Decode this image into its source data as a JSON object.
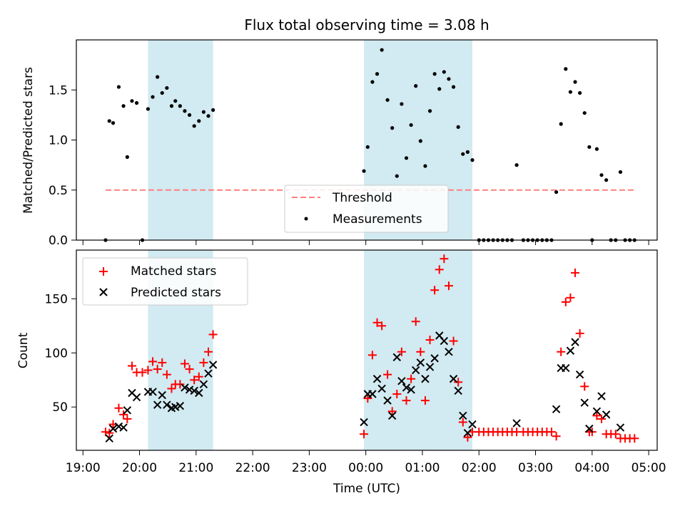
{
  "title": "Flux total observing time = 3.08 h",
  "colors": {
    "shade": "#add8e6",
    "threshold": "#ff7f7f",
    "matched": "#ff0000",
    "predicted": "#000000",
    "points": "#000000"
  },
  "chart_data": [
    {
      "type": "scatter",
      "panel": "top",
      "ylabel": "Matched/Predicted stars",
      "xlim": [
        "18:53",
        "05:09"
      ],
      "ylim": [
        0,
        2.0
      ],
      "yticks": [
        0.0,
        0.5,
        1.0,
        1.5
      ],
      "ytick_labels": [
        "0.0",
        "0.5",
        "1.0",
        "1.5"
      ],
      "shaded_intervals": [
        [
          "20:09",
          "21:18"
        ],
        [
          "23:58",
          "01:53"
        ]
      ],
      "threshold": {
        "name": "Threshold",
        "value": 0.5,
        "x_range": [
          "19:24",
          "04:45"
        ],
        "style": "dashed"
      },
      "legend": {
        "position": "lower center",
        "entries": [
          "Threshold",
          "Measurements"
        ]
      },
      "series": [
        {
          "name": "Measurements",
          "marker": "dot",
          "points": [
            [
              "19:24",
              0.0
            ],
            [
              "19:28",
              1.19
            ],
            [
              "19:32",
              1.17
            ],
            [
              "19:38",
              1.53
            ],
            [
              "19:43",
              1.34
            ],
            [
              "19:47",
              0.83
            ],
            [
              "19:52",
              1.39
            ],
            [
              "19:57",
              1.37
            ],
            [
              "20:03",
              0.0
            ],
            [
              "20:09",
              1.31
            ],
            [
              "20:14",
              1.43
            ],
            [
              "20:19",
              1.63
            ],
            [
              "20:24",
              1.47
            ],
            [
              "20:29",
              1.52
            ],
            [
              "20:34",
              1.34
            ],
            [
              "20:38",
              1.39
            ],
            [
              "20:43",
              1.34
            ],
            [
              "20:48",
              1.29
            ],
            [
              "20:53",
              1.25
            ],
            [
              "20:58",
              1.14
            ],
            [
              "21:03",
              1.19
            ],
            [
              "21:08",
              1.28
            ],
            [
              "21:13",
              1.24
            ],
            [
              "21:18",
              1.3
            ],
            [
              "23:58",
              0.69
            ],
            [
              "00:02",
              0.93
            ],
            [
              "00:07",
              1.58
            ],
            [
              "00:12",
              1.66
            ],
            [
              "00:17",
              1.9
            ],
            [
              "00:23",
              1.4
            ],
            [
              "00:28",
              1.12
            ],
            [
              "00:33",
              0.64
            ],
            [
              "00:38",
              1.36
            ],
            [
              "00:43",
              0.82
            ],
            [
              "00:48",
              1.15
            ],
            [
              "00:53",
              1.54
            ],
            [
              "00:58",
              0.99
            ],
            [
              "01:03",
              0.74
            ],
            [
              "01:08",
              1.29
            ],
            [
              "01:13",
              1.66
            ],
            [
              "01:18",
              1.51
            ],
            [
              "01:23",
              1.68
            ],
            [
              "01:28",
              1.61
            ],
            [
              "01:33",
              1.53
            ],
            [
              "01:38",
              1.13
            ],
            [
              "01:43",
              0.86
            ],
            [
              "01:48",
              0.88
            ],
            [
              "01:53",
              0.8
            ],
            [
              "02:00",
              0.0
            ],
            [
              "02:05",
              0.0
            ],
            [
              "02:10",
              0.0
            ],
            [
              "02:15",
              0.0
            ],
            [
              "02:20",
              0.0
            ],
            [
              "02:25",
              0.0
            ],
            [
              "02:30",
              0.0
            ],
            [
              "02:35",
              0.0
            ],
            [
              "02:40",
              0.75
            ],
            [
              "02:47",
              0.0
            ],
            [
              "02:52",
              0.0
            ],
            [
              "02:57",
              0.0
            ],
            [
              "03:02",
              0.0
            ],
            [
              "03:07",
              0.0
            ],
            [
              "03:12",
              0.0
            ],
            [
              "03:17",
              0.0
            ],
            [
              "03:22",
              0.48
            ],
            [
              "03:27",
              1.16
            ],
            [
              "03:32",
              1.71
            ],
            [
              "03:37",
              1.48
            ],
            [
              "03:42",
              1.58
            ],
            [
              "03:47",
              1.47
            ],
            [
              "03:52",
              1.27
            ],
            [
              "03:57",
              0.93
            ],
            [
              "04:00",
              0.0
            ],
            [
              "04:05",
              0.91
            ],
            [
              "04:10",
              0.65
            ],
            [
              "04:15",
              0.6
            ],
            [
              "04:20",
              0.0
            ],
            [
              "04:25",
              0.0
            ],
            [
              "04:30",
              0.68
            ],
            [
              "04:35",
              0.0
            ],
            [
              "04:40",
              0.0
            ],
            [
              "04:45",
              0.0
            ]
          ]
        }
      ]
    },
    {
      "type": "scatter",
      "panel": "bottom",
      "xlabel": "Time (UTC)",
      "ylabel": "Count",
      "xlim": [
        "18:53",
        "05:09"
      ],
      "ylim": [
        10,
        195
      ],
      "yticks": [
        50,
        100,
        150
      ],
      "ytick_labels": [
        "50",
        "100",
        "150"
      ],
      "xticks": [
        "19:00",
        "20:00",
        "21:00",
        "22:00",
        "23:00",
        "00:00",
        "01:00",
        "02:00",
        "03:00",
        "04:00",
        "05:00"
      ],
      "shaded_intervals": [
        [
          "20:09",
          "21:18"
        ],
        [
          "23:58",
          "01:53"
        ]
      ],
      "legend": {
        "position": "upper left",
        "entries": [
          "Matched stars",
          "Predicted stars"
        ]
      },
      "series": [
        {
          "name": "Matched stars",
          "marker": "plus",
          "points": [
            [
              "19:24",
              27
            ],
            [
              "19:28",
              26
            ],
            [
              "19:32",
              34
            ],
            [
              "19:38",
              49
            ],
            [
              "19:43",
              43
            ],
            [
              "19:47",
              39
            ],
            [
              "19:52",
              88
            ],
            [
              "19:57",
              82
            ],
            [
              "20:03",
              82
            ],
            [
              "20:09",
              84
            ],
            [
              "20:14",
              92
            ],
            [
              "20:19",
              85
            ],
            [
              "20:24",
              91
            ],
            [
              "20:29",
              80
            ],
            [
              "20:34",
              67
            ],
            [
              "20:38",
              71
            ],
            [
              "20:43",
              71
            ],
            [
              "20:48",
              90
            ],
            [
              "20:53",
              85
            ],
            [
              "20:58",
              75
            ],
            [
              "21:03",
              78
            ],
            [
              "21:08",
              91
            ],
            [
              "21:13",
              101
            ],
            [
              "21:18",
              117
            ],
            [
              "23:58",
              25
            ],
            [
              "00:02",
              58
            ],
            [
              "00:07",
              98
            ],
            [
              "00:12",
              128
            ],
            [
              "00:17",
              125
            ],
            [
              "00:23",
              80
            ],
            [
              "00:28",
              46
            ],
            [
              "00:33",
              62
            ],
            [
              "00:38",
              101
            ],
            [
              "00:43",
              56
            ],
            [
              "00:48",
              76
            ],
            [
              "00:53",
              129
            ],
            [
              "00:58",
              101
            ],
            [
              "01:03",
              56
            ],
            [
              "01:08",
              112
            ],
            [
              "01:13",
              158
            ],
            [
              "01:18",
              177
            ],
            [
              "01:23",
              187
            ],
            [
              "01:28",
              162
            ],
            [
              "01:33",
              111
            ],
            [
              "01:38",
              73
            ],
            [
              "01:43",
              36
            ],
            [
              "01:48",
              22
            ],
            [
              "01:53",
              27
            ],
            [
              "02:00",
              27
            ],
            [
              "02:05",
              27
            ],
            [
              "02:10",
              27
            ],
            [
              "02:15",
              27
            ],
            [
              "02:20",
              27
            ],
            [
              "02:25",
              27
            ],
            [
              "02:30",
              27
            ],
            [
              "02:35",
              27
            ],
            [
              "02:40",
              27
            ],
            [
              "02:47",
              27
            ],
            [
              "02:52",
              27
            ],
            [
              "02:57",
              27
            ],
            [
              "03:02",
              27
            ],
            [
              "03:07",
              27
            ],
            [
              "03:12",
              27
            ],
            [
              "03:17",
              27
            ],
            [
              "03:22",
              23
            ],
            [
              "03:27",
              101
            ],
            [
              "03:32",
              147
            ],
            [
              "03:37",
              151
            ],
            [
              "03:42",
              174
            ],
            [
              "03:47",
              118
            ],
            [
              "03:52",
              69
            ],
            [
              "03:57",
              27
            ],
            [
              "04:00",
              27
            ],
            [
              "04:05",
              42
            ],
            [
              "04:10",
              39
            ],
            [
              "04:15",
              25
            ],
            [
              "04:20",
              25
            ],
            [
              "04:25",
              25
            ],
            [
              "04:30",
              21
            ],
            [
              "04:35",
              21
            ],
            [
              "04:40",
              21
            ],
            [
              "04:45",
              21
            ]
          ]
        },
        {
          "name": "Predicted stars",
          "marker": "x",
          "points": [
            [
              "19:28",
              21
            ],
            [
              "19:32",
              30
            ],
            [
              "19:38",
              32
            ],
            [
              "19:43",
              31
            ],
            [
              "19:47",
              47
            ],
            [
              "19:52",
              63
            ],
            [
              "19:57",
              59
            ],
            [
              "20:09",
              64
            ],
            [
              "20:14",
              64
            ],
            [
              "20:19",
              52
            ],
            [
              "20:24",
              61
            ],
            [
              "20:29",
              52
            ],
            [
              "20:34",
              49
            ],
            [
              "20:38",
              50
            ],
            [
              "20:43",
              51
            ],
            [
              "20:48",
              68
            ],
            [
              "20:53",
              66
            ],
            [
              "20:58",
              65
            ],
            [
              "21:03",
              63
            ],
            [
              "21:08",
              71
            ],
            [
              "21:13",
              81
            ],
            [
              "21:18",
              89
            ],
            [
              "23:58",
              36
            ],
            [
              "00:02",
              62
            ],
            [
              "00:07",
              62
            ],
            [
              "00:12",
              76
            ],
            [
              "00:17",
              67
            ],
            [
              "00:23",
              56
            ],
            [
              "00:28",
              42
            ],
            [
              "00:33",
              96
            ],
            [
              "00:38",
              74
            ],
            [
              "00:43",
              68
            ],
            [
              "00:48",
              66
            ],
            [
              "00:53",
              84
            ],
            [
              "00:58",
              91
            ],
            [
              "01:03",
              76
            ],
            [
              "01:08",
              87
            ],
            [
              "01:13",
              95
            ],
            [
              "01:18",
              116
            ],
            [
              "01:23",
              111
            ],
            [
              "01:28",
              101
            ],
            [
              "01:33",
              76
            ],
            [
              "01:38",
              65
            ],
            [
              "01:43",
              42
            ],
            [
              "01:48",
              26
            ],
            [
              "01:53",
              34
            ],
            [
              "02:40",
              35
            ],
            [
              "03:22",
              48
            ],
            [
              "03:27",
              86
            ],
            [
              "03:32",
              86
            ],
            [
              "03:37",
              102
            ],
            [
              "03:42",
              110
            ],
            [
              "03:47",
              80
            ],
            [
              "03:52",
              54
            ],
            [
              "03:57",
              30
            ],
            [
              "04:05",
              46
            ],
            [
              "04:10",
              60
            ],
            [
              "04:15",
              43
            ],
            [
              "04:30",
              31
            ]
          ]
        }
      ]
    }
  ]
}
